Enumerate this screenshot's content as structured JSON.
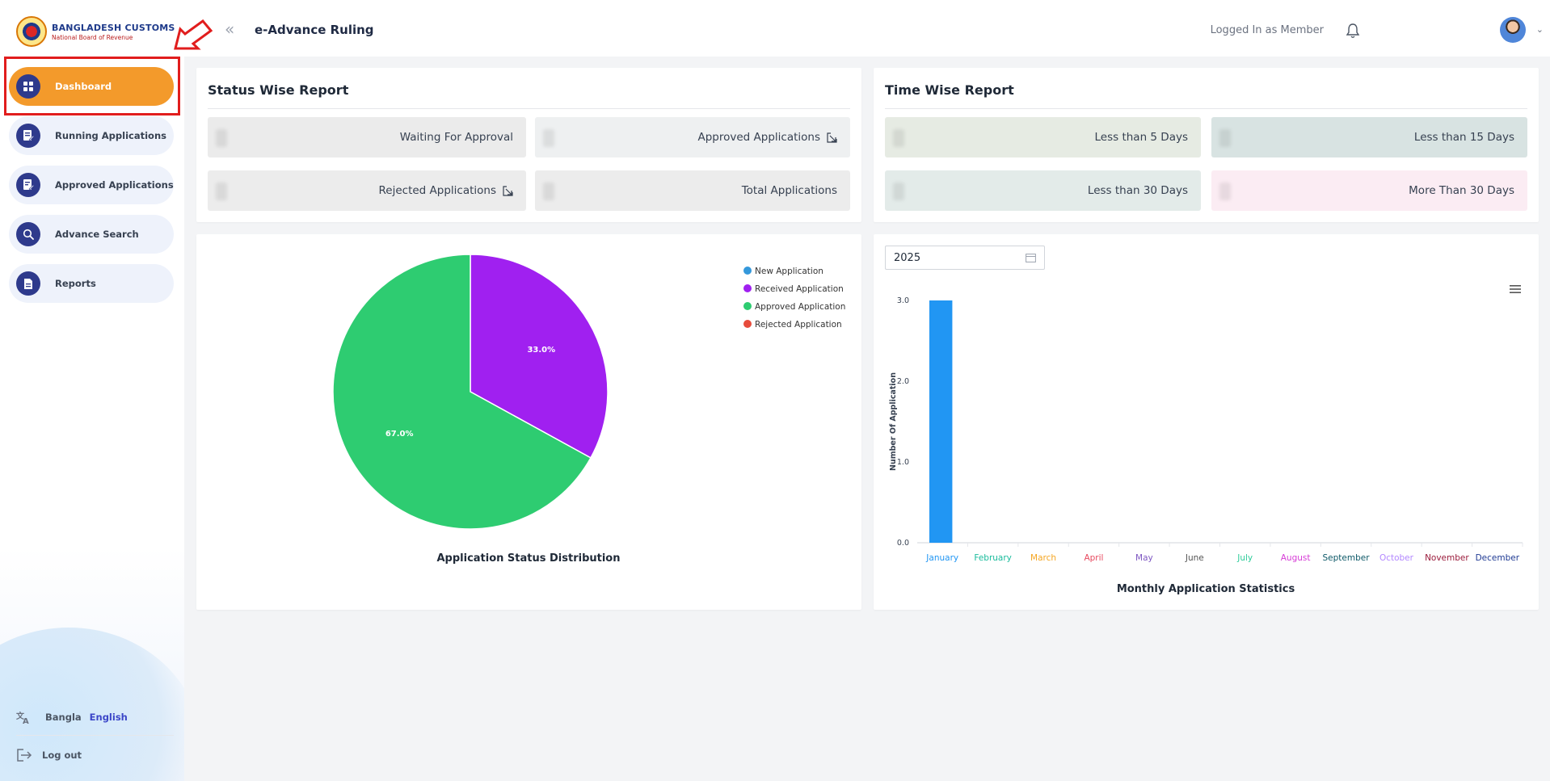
{
  "brand": {
    "title": "BANGLADESH CUSTOMS",
    "subtitle": "National Board of Revenue"
  },
  "sidebar": {
    "items": [
      {
        "label": "Dashboard",
        "icon": "grid-icon",
        "active": true
      },
      {
        "label": "Running Applications",
        "icon": "edit-doc-icon",
        "active": false
      },
      {
        "label": "Approved Applications",
        "icon": "approved-doc-icon",
        "active": false
      },
      {
        "label": "Advance Search",
        "icon": "search-icon",
        "active": false
      },
      {
        "label": "Reports",
        "icon": "report-icon",
        "active": false
      }
    ],
    "lang_bn": "Bangla",
    "lang_en": "English",
    "logout": "Log out"
  },
  "header": {
    "app_title": "e-Advance Ruling",
    "login_text": "Logged In as Member"
  },
  "status_report": {
    "title": "Status Wise Report",
    "tiles": [
      "Waiting For Approval",
      "Approved Applications",
      "Rejected Applications",
      "Total Applications"
    ]
  },
  "time_report": {
    "title": "Time Wise Report",
    "tiles": [
      "Less than 5 Days",
      "Less than 15 Days",
      "Less than 30 Days",
      "More Than 30 Days"
    ]
  },
  "year_picker": {
    "value": "2025"
  },
  "colors": {
    "accent": "#f39a2b",
    "nav_icon_bg": "#2e3a8c",
    "annotation": "#e11d1d"
  },
  "chart_data": [
    {
      "type": "pie",
      "title": "Application Status Distribution",
      "labels": [
        "New Application",
        "Received Application",
        "Approved Application",
        "Rejected Application"
      ],
      "values": [
        0,
        33.0,
        67.0,
        0
      ],
      "value_labels": [
        "",
        "33.0%",
        "67.0%",
        ""
      ],
      "colors": [
        "#3498db",
        "#a020f0",
        "#2ecc71",
        "#e74c3c"
      ],
      "legend": "top-right"
    },
    {
      "type": "bar",
      "title": "Monthly Application Statistics",
      "ylabel": "Number Of Application",
      "xlabel": "",
      "categories": [
        "January",
        "February",
        "March",
        "April",
        "May",
        "June",
        "July",
        "August",
        "September",
        "October",
        "November",
        "December"
      ],
      "values": [
        3,
        0,
        0,
        0,
        0,
        0,
        0,
        0,
        0,
        0,
        0,
        0
      ],
      "yticks": [
        "0.0",
        "1.0",
        "2.0",
        "3.0"
      ],
      "ylim": [
        0,
        3
      ],
      "bar_color": "#2196f3",
      "category_colors": [
        "#2196f3",
        "#1abc9c",
        "#f5a623",
        "#e84a5f",
        "#7e57c2",
        "#555555",
        "#2ecc9a",
        "#d63bd6",
        "#0e5968",
        "#b388ff",
        "#9b1c3c",
        "#1f3a93"
      ]
    }
  ]
}
